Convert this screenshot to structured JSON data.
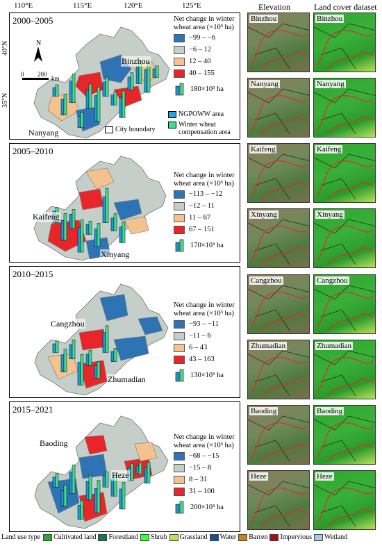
{
  "coords": {
    "longitudes": [
      "110°E",
      "115°E",
      "120°E",
      "125°E"
    ],
    "latitudes": [
      "40°N",
      "35°N"
    ]
  },
  "column_headers": [
    "Elevation",
    "Land cover dataset"
  ],
  "panels": [
    {
      "period": "2000–2005",
      "legend_title_1": "Net change in winter",
      "legend_title_2": "wheat area (×10³ ha)",
      "classes": [
        "−99 – −6",
        "−6 – 12",
        "12 – 40",
        "40 – 155"
      ],
      "bar_legend": "180×10³ ha",
      "cities": [
        "Binzhou",
        "Nanyang"
      ],
      "bars": [
        0.3,
        0.55,
        0.75,
        0.4,
        0.65,
        0.9,
        0.5,
        0.35,
        0.7,
        0.45,
        0.6,
        0.8,
        0.3
      ]
    },
    {
      "period": "2005–2010",
      "legend_title_1": "Net change in winter",
      "legend_title_2": "wheat area (×10³ ha)",
      "classes": [
        "−113 – −12",
        "−12 – 11",
        "11 – 67",
        "67 – 151"
      ],
      "bar_legend": "170×10³ ha",
      "cities": [
        "Kaifeng",
        "Xinyang"
      ],
      "bars": [
        0.4,
        0.7,
        0.5,
        0.85,
        0.35,
        0.6,
        0.9,
        0.45,
        0.55
      ]
    },
    {
      "period": "2010–2015",
      "legend_title_1": "Net change in winter",
      "legend_title_2": "wheat area (×10³ ha)",
      "classes": [
        "−93 – −11",
        "−11 – 6",
        "6 – 43",
        "43 – 163"
      ],
      "bar_legend": "130×10³ ha",
      "cities": [
        "Cangzhou",
        "Zhumadian"
      ],
      "bars": [
        0.3,
        0.6,
        0.5,
        0.8,
        0.4,
        0.45,
        0.7,
        0.35
      ]
    },
    {
      "period": "2015–2021",
      "legend_title_1": "Net change in winter",
      "legend_title_2": "wheat area (×10³ ha)",
      "classes": [
        "−68 – −15",
        "−15 – 8",
        "8 – 31",
        "31 – 100"
      ],
      "bar_legend": "200×10³ ha",
      "cities": [
        "Baoding",
        "Heze"
      ],
      "bars": [
        0.35,
        0.55,
        0.75,
        0.5,
        0.65,
        0.85,
        0.4,
        0.6,
        0.7,
        0.45,
        0.3,
        0.55
      ]
    }
  ],
  "map_extras": {
    "north": "N",
    "scale_0": "0",
    "scale_200": "200",
    "scale_unit": "km",
    "ngpoww": "NGPOWW area",
    "city_boundary": "City boundary",
    "compensation_1": "Winter wheat",
    "compensation_2": "compensation area"
  },
  "tiles": [
    {
      "elev": "Binzhou",
      "land": "Binzhou"
    },
    {
      "elev": "Nanyang",
      "land": "Nanyang"
    },
    {
      "elev": "Kaifeng",
      "land": "Kaifeng"
    },
    {
      "elev": "Xinyang",
      "land": "Xinyang"
    },
    {
      "elev": "Cangzhou",
      "land": "Cangzhou"
    },
    {
      "elev": "Zhumadian",
      "land": "Zhumadian"
    },
    {
      "elev": "Baoding",
      "land": "Baoding"
    },
    {
      "elev": "Heze",
      "land": "Heze"
    }
  ],
  "class_colors": [
    "#2e74b5",
    "#c5cec8",
    "#f4c28f",
    "#e8262a"
  ],
  "land_use": {
    "label": "Land use type",
    "items": [
      {
        "name": "Cultivated land",
        "color": "#2ea82e"
      },
      {
        "name": "Forestland",
        "color": "#157a4b"
      },
      {
        "name": "Shrub",
        "color": "#3bff3b"
      },
      {
        "name": "Grassland",
        "color": "#b6e35a"
      },
      {
        "name": "Water",
        "color": "#1d4f91"
      },
      {
        "name": "Barren",
        "color": "#c8851f"
      },
      {
        "name": "Impervious",
        "color": "#a0121a"
      },
      {
        "name": "Wetland",
        "color": "#a8c8ee"
      }
    ]
  }
}
